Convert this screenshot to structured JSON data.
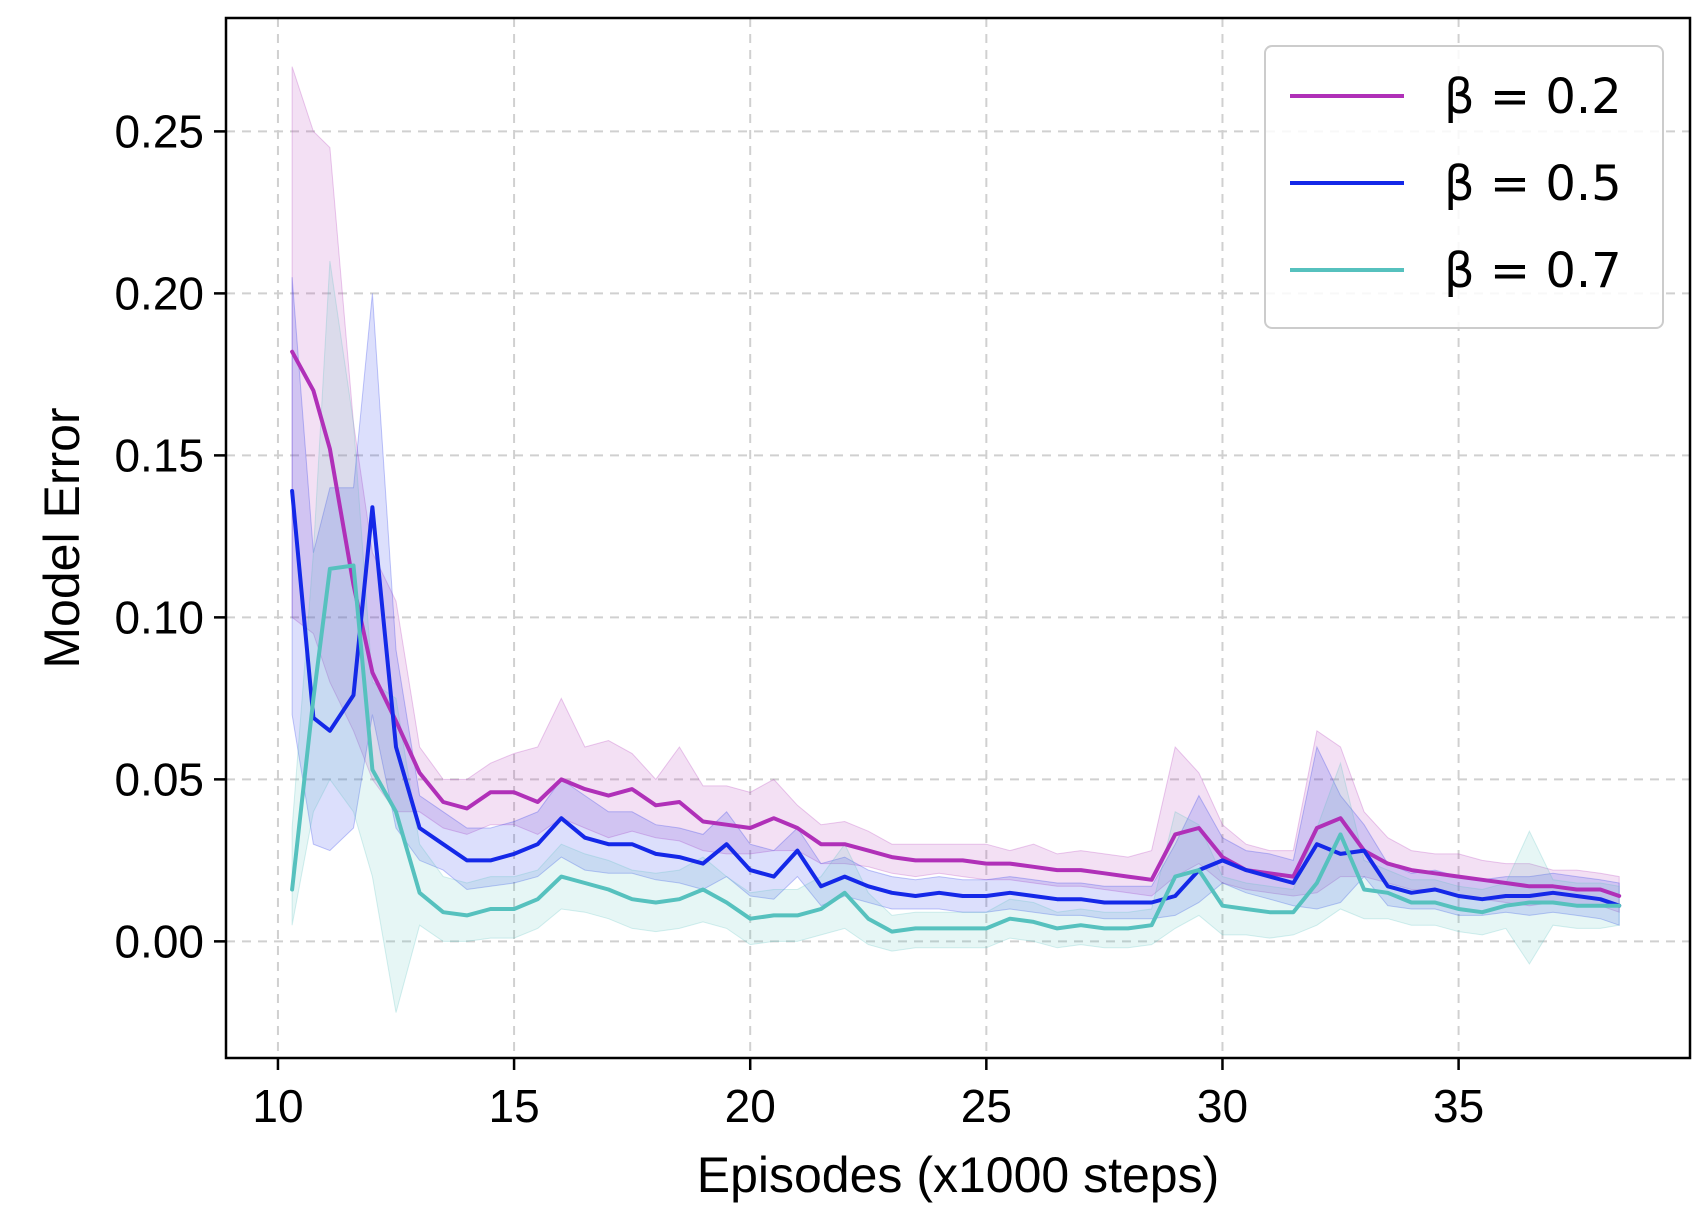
{
  "chart_data": {
    "type": "line",
    "xlabel": "Episodes (x1000 steps)",
    "ylabel": "Model Error",
    "xlim": [
      8.9,
      39.9
    ],
    "ylim": [
      -0.036,
      0.285
    ],
    "xticks": [
      10,
      15,
      20,
      25,
      30,
      35
    ],
    "xtick_labels": [
      "10",
      "15",
      "20",
      "25",
      "30",
      "35"
    ],
    "yticks": [
      0.0,
      0.05,
      0.1,
      0.15,
      0.2,
      0.25
    ],
    "ytick_labels": [
      "0.00",
      "0.05",
      "0.10",
      "0.15",
      "0.20",
      "0.25"
    ],
    "grid": true,
    "legend_position": "top-right",
    "shaded_band": "variability around each series",
    "x": [
      10.3,
      10.75,
      11.1,
      11.6,
      12.0,
      12.5,
      13.0,
      13.5,
      14.0,
      14.5,
      15.0,
      15.5,
      16.0,
      16.5,
      17.0,
      17.5,
      18.0,
      18.5,
      19.0,
      19.5,
      20.0,
      20.5,
      21.0,
      21.5,
      22.0,
      22.5,
      23.0,
      23.5,
      24.0,
      24.5,
      25.0,
      25.5,
      26.0,
      26.5,
      27.0,
      27.5,
      28.0,
      28.5,
      29.0,
      29.5,
      30.0,
      30.5,
      31.0,
      31.5,
      32.0,
      32.5,
      33.0,
      33.5,
      34.0,
      34.5,
      35.0,
      35.5,
      36.0,
      36.5,
      37.0,
      37.5,
      38.0,
      38.4
    ],
    "series": [
      {
        "name": "β = 0.2",
        "legend_label": "β = 0.2",
        "color": "#b030b8",
        "values": [
          0.182,
          0.17,
          0.152,
          0.11,
          0.083,
          0.068,
          0.052,
          0.043,
          0.041,
          0.046,
          0.046,
          0.043,
          0.05,
          0.047,
          0.045,
          0.047,
          0.042,
          0.043,
          0.037,
          0.036,
          0.035,
          0.038,
          0.035,
          0.03,
          0.03,
          0.028,
          0.026,
          0.025,
          0.025,
          0.025,
          0.024,
          0.024,
          0.023,
          0.022,
          0.022,
          0.021,
          0.02,
          0.019,
          0.033,
          0.035,
          0.026,
          0.022,
          0.021,
          0.02,
          0.035,
          0.038,
          0.028,
          0.024,
          0.022,
          0.021,
          0.02,
          0.019,
          0.018,
          0.017,
          0.017,
          0.016,
          0.016,
          0.014
        ]
      },
      {
        "name": "β = 0.5",
        "legend_label": "β = 0.5",
        "color": "#1428e8",
        "values": [
          0.139,
          0.069,
          0.065,
          0.076,
          0.134,
          0.06,
          0.035,
          0.03,
          0.025,
          0.025,
          0.027,
          0.03,
          0.038,
          0.032,
          0.03,
          0.03,
          0.027,
          0.026,
          0.024,
          0.03,
          0.022,
          0.02,
          0.028,
          0.017,
          0.02,
          0.017,
          0.015,
          0.014,
          0.015,
          0.014,
          0.014,
          0.015,
          0.014,
          0.013,
          0.013,
          0.012,
          0.012,
          0.012,
          0.014,
          0.022,
          0.025,
          0.022,
          0.02,
          0.018,
          0.03,
          0.027,
          0.028,
          0.017,
          0.015,
          0.016,
          0.014,
          0.013,
          0.014,
          0.014,
          0.015,
          0.014,
          0.013,
          0.011
        ]
      },
      {
        "name": "β = 0.7",
        "legend_label": "β = 0.7",
        "color": "#56c1be",
        "values": [
          0.016,
          0.075,
          0.115,
          0.116,
          0.053,
          0.04,
          0.015,
          0.009,
          0.008,
          0.01,
          0.01,
          0.013,
          0.02,
          0.018,
          0.016,
          0.013,
          0.012,
          0.013,
          0.016,
          0.012,
          0.007,
          0.008,
          0.008,
          0.01,
          0.015,
          0.007,
          0.003,
          0.004,
          0.004,
          0.004,
          0.004,
          0.007,
          0.006,
          0.004,
          0.005,
          0.004,
          0.004,
          0.005,
          0.02,
          0.022,
          0.011,
          0.01,
          0.009,
          0.009,
          0.018,
          0.033,
          0.016,
          0.015,
          0.012,
          0.012,
          0.01,
          0.009,
          0.011,
          0.012,
          0.012,
          0.011,
          0.011,
          0.011
        ]
      }
    ],
    "bands": [
      {
        "series": "β = 0.2",
        "upper": [
          0.27,
          0.25,
          0.245,
          0.16,
          0.12,
          0.105,
          0.06,
          0.05,
          0.05,
          0.055,
          0.058,
          0.06,
          0.075,
          0.06,
          0.062,
          0.058,
          0.05,
          0.06,
          0.048,
          0.048,
          0.046,
          0.05,
          0.042,
          0.036,
          0.037,
          0.034,
          0.03,
          0.03,
          0.03,
          0.03,
          0.03,
          0.028,
          0.03,
          0.027,
          0.028,
          0.027,
          0.026,
          0.028,
          0.06,
          0.052,
          0.036,
          0.03,
          0.028,
          0.028,
          0.065,
          0.06,
          0.04,
          0.032,
          0.028,
          0.027,
          0.027,
          0.025,
          0.024,
          0.024,
          0.022,
          0.022,
          0.021,
          0.02
        ],
        "lower": [
          0.1,
          0.095,
          0.08,
          0.065,
          0.05,
          0.04,
          0.04,
          0.035,
          0.033,
          0.036,
          0.036,
          0.033,
          0.038,
          0.035,
          0.032,
          0.034,
          0.032,
          0.031,
          0.028,
          0.027,
          0.027,
          0.028,
          0.028,
          0.024,
          0.024,
          0.023,
          0.021,
          0.02,
          0.021,
          0.02,
          0.019,
          0.019,
          0.018,
          0.017,
          0.017,
          0.016,
          0.015,
          0.014,
          0.02,
          0.024,
          0.018,
          0.016,
          0.015,
          0.014,
          0.015,
          0.02,
          0.02,
          0.018,
          0.016,
          0.016,
          0.014,
          0.013,
          0.012,
          0.011,
          0.012,
          0.011,
          0.011,
          0.009
        ]
      },
      {
        "series": "β = 0.5",
        "upper": [
          0.205,
          0.12,
          0.14,
          0.14,
          0.2,
          0.09,
          0.045,
          0.04,
          0.035,
          0.035,
          0.037,
          0.04,
          0.05,
          0.045,
          0.04,
          0.04,
          0.036,
          0.035,
          0.033,
          0.04,
          0.03,
          0.028,
          0.035,
          0.024,
          0.026,
          0.022,
          0.02,
          0.019,
          0.02,
          0.019,
          0.019,
          0.02,
          0.019,
          0.018,
          0.018,
          0.017,
          0.017,
          0.017,
          0.03,
          0.045,
          0.032,
          0.028,
          0.027,
          0.025,
          0.06,
          0.045,
          0.036,
          0.024,
          0.021,
          0.022,
          0.02,
          0.019,
          0.02,
          0.02,
          0.021,
          0.02,
          0.019,
          0.018
        ],
        "lower": [
          0.07,
          0.03,
          0.028,
          0.035,
          0.07,
          0.035,
          0.025,
          0.022,
          0.016,
          0.017,
          0.018,
          0.02,
          0.026,
          0.022,
          0.021,
          0.021,
          0.019,
          0.018,
          0.016,
          0.02,
          0.014,
          0.013,
          0.02,
          0.011,
          0.014,
          0.012,
          0.01,
          0.01,
          0.01,
          0.009,
          0.009,
          0.01,
          0.009,
          0.008,
          0.008,
          0.007,
          0.007,
          0.007,
          0.008,
          0.012,
          0.018,
          0.015,
          0.013,
          0.011,
          0.01,
          0.012,
          0.02,
          0.011,
          0.01,
          0.01,
          0.008,
          0.008,
          0.009,
          0.008,
          0.009,
          0.008,
          0.007,
          0.005
        ]
      },
      {
        "series": "β = 0.7",
        "upper": [
          0.035,
          0.12,
          0.21,
          0.16,
          0.08,
          0.075,
          0.03,
          0.02,
          0.018,
          0.02,
          0.02,
          0.022,
          0.03,
          0.027,
          0.025,
          0.022,
          0.021,
          0.022,
          0.026,
          0.02,
          0.015,
          0.016,
          0.016,
          0.02,
          0.03,
          0.015,
          0.008,
          0.009,
          0.009,
          0.009,
          0.009,
          0.013,
          0.012,
          0.009,
          0.01,
          0.009,
          0.009,
          0.01,
          0.04,
          0.036,
          0.02,
          0.018,
          0.017,
          0.016,
          0.035,
          0.055,
          0.025,
          0.022,
          0.019,
          0.019,
          0.017,
          0.016,
          0.018,
          0.034,
          0.019,
          0.018,
          0.018,
          0.017
        ],
        "lower": [
          0.005,
          0.04,
          0.05,
          0.04,
          0.02,
          -0.022,
          0.005,
          0.0,
          0.0,
          0.001,
          0.001,
          0.004,
          0.01,
          0.009,
          0.007,
          0.004,
          0.003,
          0.004,
          0.006,
          0.004,
          -0.001,
          0.0,
          0.0,
          0.002,
          0.004,
          -0.001,
          -0.003,
          -0.002,
          -0.002,
          -0.002,
          -0.002,
          0.001,
          0.0,
          -0.002,
          -0.001,
          -0.002,
          -0.002,
          -0.001,
          0.004,
          0.008,
          0.002,
          0.002,
          0.001,
          0.002,
          0.005,
          0.01,
          0.007,
          0.007,
          0.005,
          0.005,
          0.003,
          0.002,
          0.004,
          -0.007,
          0.005,
          0.004,
          0.004,
          0.005
        ]
      }
    ]
  }
}
